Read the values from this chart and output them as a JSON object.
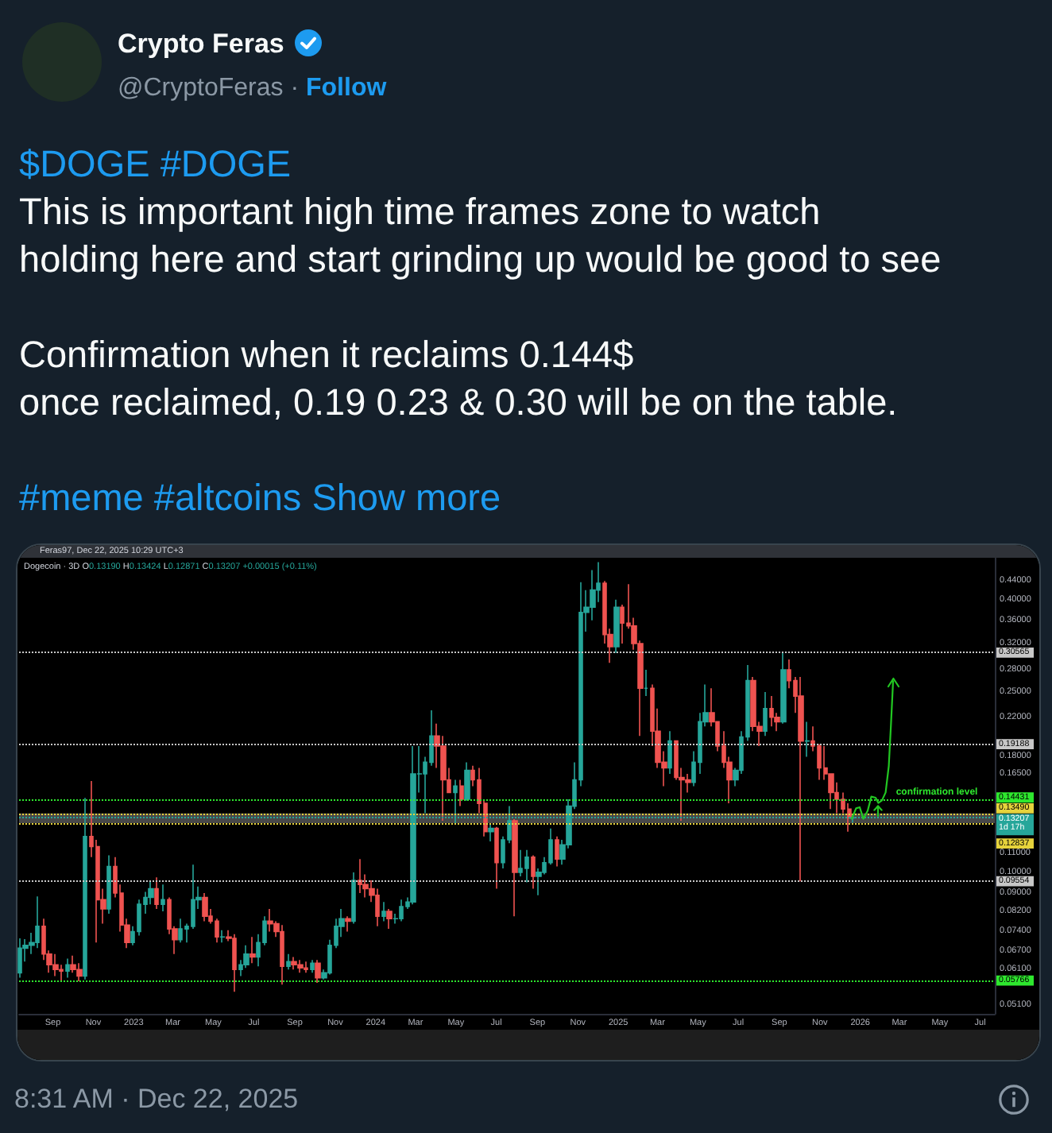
{
  "chart_data": {
    "type": "candlestick",
    "title": "$DOGE #DOGE",
    "subtitle": "This is important high time frames zone to watch\nholding here and start grinding up would be good to see\n\nConfirmation when it reclaims 0.144$\nonce reclaimed, 0.19 0.23 & 0.30 will be on the table.",
    "annotations": [
      "Crypto Feras",
      "@CryptoFeras ·",
      "Follow",
      "#meme #altcoins",
      "Show more",
      "Feras97, Dec 22, 2025 10:29 UTC+3",
      "Dogecoin · 3D",
      "O0.13190 H0.13424 L0.12871 C0.13207 +0.00015 (+0.11%)",
      "8:31 AM · Dec 22, 2025",
      {
        "text": "confirmation level",
        "x": "2026-02-24",
        "y": 0.14431
      }
    ],
    "x": [
      "2022-07-13",
      "2022-07-22",
      "2022-07-31",
      "2022-08-09",
      "2022-08-18",
      "2022-08-27",
      "2022-09-05",
      "2022-09-14",
      "2022-09-23",
      "2022-10-02",
      "2022-10-11",
      "2022-10-20",
      "2022-10-29",
      "2022-11-07",
      "2022-11-16",
      "2022-11-25",
      "2022-12-04",
      "2022-12-13",
      "2022-12-22",
      "2022-12-31",
      "2023-01-09",
      "2023-01-18",
      "2023-01-27",
      "2023-02-05",
      "2023-02-14",
      "2023-02-23",
      "2023-03-04",
      "2023-03-13",
      "2023-03-22",
      "2023-03-31",
      "2023-04-09",
      "2023-04-18",
      "2023-04-27",
      "2023-05-06",
      "2023-05-15",
      "2023-05-24",
      "2023-06-02",
      "2023-06-11",
      "2023-06-20",
      "2023-06-29",
      "2023-07-08",
      "2023-07-17",
      "2023-07-26",
      "2023-08-04",
      "2023-08-13",
      "2023-08-22",
      "2023-08-31",
      "2023-09-09",
      "2023-09-18",
      "2023-09-27",
      "2023-10-06",
      "2023-10-15",
      "2023-10-24",
      "2023-11-02",
      "2023-11-11",
      "2023-11-20",
      "2023-11-29",
      "2023-12-08",
      "2023-12-17",
      "2023-12-26",
      "2024-01-04",
      "2024-01-13",
      "2024-01-22",
      "2024-01-31",
      "2024-02-09",
      "2024-02-18",
      "2024-02-27",
      "2024-03-07",
      "2024-03-16",
      "2024-03-25",
      "2024-04-03",
      "2024-04-12",
      "2024-04-21",
      "2024-04-30",
      "2024-05-09",
      "2024-05-18",
      "2024-05-27",
      "2024-06-05",
      "2024-06-14",
      "2024-06-23",
      "2024-07-02",
      "2024-07-11",
      "2024-07-20",
      "2024-07-29",
      "2024-08-07",
      "2024-08-16",
      "2024-08-25",
      "2024-09-03",
      "2024-09-12",
      "2024-09-21",
      "2024-09-30",
      "2024-10-09",
      "2024-10-18",
      "2024-10-27",
      "2024-11-05",
      "2024-11-14",
      "2024-11-23",
      "2024-12-02",
      "2024-12-11",
      "2024-12-20",
      "2024-12-29",
      "2025-01-07",
      "2025-01-16",
      "2025-01-25",
      "2025-02-03",
      "2025-02-12",
      "2025-02-21",
      "2025-03-02",
      "2025-03-11",
      "2025-03-20",
      "2025-03-29",
      "2025-04-07",
      "2025-04-16",
      "2025-04-25",
      "2025-05-04",
      "2025-05-13",
      "2025-05-22",
      "2025-05-31",
      "2025-06-09",
      "2025-06-18",
      "2025-06-27",
      "2025-07-06",
      "2025-07-15",
      "2025-07-24",
      "2025-08-02",
      "2025-08-11",
      "2025-08-20",
      "2025-08-29",
      "2025-09-07",
      "2025-09-16",
      "2025-09-25",
      "2025-10-04",
      "2025-10-13",
      "2025-10-22",
      "2025-10-31",
      "2025-11-09",
      "2025-11-18",
      "2025-11-27",
      "2025-12-06",
      "2025-12-15",
      "2025-12-21"
    ],
    "ohlc": [
      [
        0.06,
        0.0715,
        0.0585,
        0.068
      ],
      [
        0.068,
        0.0712,
        0.0635,
        0.069
      ],
      [
        0.069,
        0.0735,
        0.066,
        0.07
      ],
      [
        0.07,
        0.0885,
        0.068,
        0.076
      ],
      [
        0.076,
        0.079,
        0.064,
        0.066
      ],
      [
        0.066,
        0.0672,
        0.06,
        0.0625
      ],
      [
        0.0625,
        0.066,
        0.059,
        0.061
      ],
      [
        0.061,
        0.0625,
        0.0575,
        0.0605
      ],
      [
        0.0605,
        0.0645,
        0.0585,
        0.0625
      ],
      [
        0.0625,
        0.0655,
        0.06,
        0.061
      ],
      [
        0.061,
        0.063,
        0.0575,
        0.059
      ],
      [
        0.059,
        0.146,
        0.058,
        0.12
      ],
      [
        0.12,
        0.159,
        0.108,
        0.114
      ],
      [
        0.114,
        0.118,
        0.07,
        0.087
      ],
      [
        0.087,
        0.092,
        0.077,
        0.083
      ],
      [
        0.083,
        0.109,
        0.081,
        0.103
      ],
      [
        0.103,
        0.108,
        0.088,
        0.09
      ],
      [
        0.09,
        0.094,
        0.074,
        0.0765
      ],
      [
        0.0765,
        0.079,
        0.068,
        0.07
      ],
      [
        0.07,
        0.076,
        0.069,
        0.074
      ],
      [
        0.074,
        0.087,
        0.0725,
        0.085
      ],
      [
        0.085,
        0.0905,
        0.081,
        0.088
      ],
      [
        0.088,
        0.096,
        0.085,
        0.092
      ],
      [
        0.092,
        0.0975,
        0.083,
        0.085
      ],
      [
        0.085,
        0.094,
        0.082,
        0.087
      ],
      [
        0.087,
        0.088,
        0.073,
        0.075
      ],
      [
        0.075,
        0.076,
        0.066,
        0.071
      ],
      [
        0.071,
        0.079,
        0.07,
        0.075
      ],
      [
        0.075,
        0.077,
        0.07,
        0.076
      ],
      [
        0.076,
        0.104,
        0.075,
        0.087
      ],
      [
        0.087,
        0.093,
        0.083,
        0.088
      ],
      [
        0.088,
        0.09,
        0.078,
        0.08
      ],
      [
        0.08,
        0.083,
        0.077,
        0.078
      ],
      [
        0.078,
        0.079,
        0.07,
        0.072
      ],
      [
        0.072,
        0.0745,
        0.07,
        0.072
      ],
      [
        0.072,
        0.0745,
        0.0705,
        0.0715
      ],
      [
        0.0715,
        0.073,
        0.0545,
        0.061
      ],
      [
        0.061,
        0.064,
        0.059,
        0.0625
      ],
      [
        0.0625,
        0.069,
        0.0615,
        0.066
      ],
      [
        0.066,
        0.072,
        0.063,
        0.065
      ],
      [
        0.065,
        0.073,
        0.062,
        0.07
      ],
      [
        0.07,
        0.08,
        0.069,
        0.078
      ],
      [
        0.078,
        0.083,
        0.074,
        0.077
      ],
      [
        0.077,
        0.078,
        0.072,
        0.074
      ],
      [
        0.074,
        0.0765,
        0.0565,
        0.062
      ],
      [
        0.062,
        0.066,
        0.061,
        0.0635
      ],
      [
        0.0635,
        0.065,
        0.061,
        0.0625
      ],
      [
        0.0625,
        0.064,
        0.06,
        0.0615
      ],
      [
        0.0615,
        0.0635,
        0.06,
        0.061
      ],
      [
        0.061,
        0.064,
        0.06,
        0.063
      ],
      [
        0.063,
        0.064,
        0.057,
        0.0585
      ],
      [
        0.0585,
        0.061,
        0.058,
        0.06
      ],
      [
        0.06,
        0.071,
        0.0595,
        0.069
      ],
      [
        0.069,
        0.079,
        0.068,
        0.076
      ],
      [
        0.076,
        0.083,
        0.072,
        0.079
      ],
      [
        0.079,
        0.08,
        0.074,
        0.078
      ],
      [
        0.078,
        0.1,
        0.077,
        0.096
      ],
      [
        0.096,
        0.107,
        0.09,
        0.094
      ],
      [
        0.094,
        0.099,
        0.088,
        0.092
      ],
      [
        0.092,
        0.096,
        0.086,
        0.089
      ],
      [
        0.089,
        0.092,
        0.076,
        0.08
      ],
      [
        0.08,
        0.086,
        0.078,
        0.082
      ],
      [
        0.082,
        0.083,
        0.075,
        0.079
      ],
      [
        0.079,
        0.081,
        0.077,
        0.079
      ],
      [
        0.079,
        0.087,
        0.078,
        0.084
      ],
      [
        0.084,
        0.088,
        0.083,
        0.086
      ],
      [
        0.086,
        0.19,
        0.085,
        0.165
      ],
      [
        0.165,
        0.19,
        0.15,
        0.165
      ],
      [
        0.165,
        0.18,
        0.135,
        0.175
      ],
      [
        0.175,
        0.228,
        0.172,
        0.2
      ],
      [
        0.2,
        0.213,
        0.17,
        0.19
      ],
      [
        0.19,
        0.2,
        0.13,
        0.16
      ],
      [
        0.16,
        0.17,
        0.15,
        0.15
      ],
      [
        0.15,
        0.16,
        0.128,
        0.155
      ],
      [
        0.155,
        0.16,
        0.14,
        0.145
      ],
      [
        0.145,
        0.175,
        0.144,
        0.168
      ],
      [
        0.168,
        0.172,
        0.155,
        0.16
      ],
      [
        0.16,
        0.17,
        0.135,
        0.142
      ],
      [
        0.142,
        0.145,
        0.12,
        0.123
      ],
      [
        0.123,
        0.128,
        0.117,
        0.125
      ],
      [
        0.125,
        0.126,
        0.092,
        0.105
      ],
      [
        0.105,
        0.12,
        0.102,
        0.118
      ],
      [
        0.118,
        0.14,
        0.116,
        0.13
      ],
      [
        0.13,
        0.131,
        0.08,
        0.1
      ],
      [
        0.1,
        0.112,
        0.098,
        0.102
      ],
      [
        0.102,
        0.112,
        0.095,
        0.108
      ],
      [
        0.108,
        0.109,
        0.092,
        0.098
      ],
      [
        0.098,
        0.102,
        0.089,
        0.1
      ],
      [
        0.1,
        0.108,
        0.099,
        0.105
      ],
      [
        0.105,
        0.125,
        0.104,
        0.118
      ],
      [
        0.118,
        0.12,
        0.103,
        0.107
      ],
      [
        0.107,
        0.118,
        0.104,
        0.115
      ],
      [
        0.115,
        0.145,
        0.113,
        0.14
      ],
      [
        0.14,
        0.175,
        0.138,
        0.16
      ],
      [
        0.16,
        0.437,
        0.155,
        0.375
      ],
      [
        0.375,
        0.42,
        0.34,
        0.385
      ],
      [
        0.385,
        0.465,
        0.36,
        0.42
      ],
      [
        0.42,
        0.484,
        0.395,
        0.435
      ],
      [
        0.435,
        0.44,
        0.32,
        0.335
      ],
      [
        0.335,
        0.345,
        0.29,
        0.315
      ],
      [
        0.315,
        0.4,
        0.305,
        0.385
      ],
      [
        0.385,
        0.39,
        0.32,
        0.355
      ],
      [
        0.355,
        0.433,
        0.345,
        0.35
      ],
      [
        0.35,
        0.365,
        0.31,
        0.32
      ],
      [
        0.32,
        0.325,
        0.2,
        0.255
      ],
      [
        0.255,
        0.28,
        0.245,
        0.255
      ],
      [
        0.255,
        0.26,
        0.19,
        0.205
      ],
      [
        0.205,
        0.23,
        0.17,
        0.175
      ],
      [
        0.175,
        0.185,
        0.155,
        0.17
      ],
      [
        0.17,
        0.205,
        0.165,
        0.195
      ],
      [
        0.195,
        0.195,
        0.16,
        0.162
      ],
      [
        0.162,
        0.17,
        0.13,
        0.16
      ],
      [
        0.16,
        0.165,
        0.15,
        0.158
      ],
      [
        0.158,
        0.185,
        0.155,
        0.175
      ],
      [
        0.175,
        0.225,
        0.165,
        0.215
      ],
      [
        0.215,
        0.26,
        0.21,
        0.225
      ],
      [
        0.225,
        0.255,
        0.21,
        0.215
      ],
      [
        0.215,
        0.215,
        0.185,
        0.19
      ],
      [
        0.19,
        0.205,
        0.17,
        0.175
      ],
      [
        0.175,
        0.18,
        0.142,
        0.16
      ],
      [
        0.16,
        0.17,
        0.155,
        0.168
      ],
      [
        0.168,
        0.205,
        0.165,
        0.199
      ],
      [
        0.199,
        0.287,
        0.195,
        0.265
      ],
      [
        0.265,
        0.27,
        0.205,
        0.21
      ],
      [
        0.21,
        0.215,
        0.19,
        0.205
      ],
      [
        0.205,
        0.25,
        0.2,
        0.23
      ],
      [
        0.23,
        0.245,
        0.21,
        0.22
      ],
      [
        0.22,
        0.225,
        0.205,
        0.215
      ],
      [
        0.215,
        0.307,
        0.213,
        0.28
      ],
      [
        0.28,
        0.295,
        0.255,
        0.265
      ],
      [
        0.265,
        0.27,
        0.225,
        0.245
      ],
      [
        0.245,
        0.27,
        0.0955,
        0.195
      ],
      [
        0.195,
        0.215,
        0.18,
        0.195
      ],
      [
        0.195,
        0.21,
        0.185,
        0.19
      ],
      [
        0.19,
        0.192,
        0.16,
        0.17
      ],
      [
        0.17,
        0.19,
        0.16,
        0.165
      ],
      [
        0.165,
        0.165,
        0.138,
        0.15
      ],
      [
        0.15,
        0.158,
        0.135,
        0.145
      ],
      [
        0.145,
        0.15,
        0.135,
        0.138
      ],
      [
        0.138,
        0.142,
        0.123,
        0.1319
      ],
      [
        0.1319,
        0.13424,
        0.12871,
        0.13207
      ]
    ],
    "colors": [
      "#26a69a",
      "#26a69a",
      "#26a69a",
      "#26a69a",
      "#ef5350",
      "#ef5350",
      "#ef5350",
      "#ef5350",
      "#26a69a",
      "#ef5350",
      "#ef5350",
      "#26a69a",
      "#ef5350",
      "#ef5350",
      "#ef5350",
      "#26a69a",
      "#ef5350",
      "#ef5350",
      "#ef5350",
      "#26a69a",
      "#26a69a",
      "#26a69a",
      "#26a69a",
      "#ef5350",
      "#26a69a",
      "#ef5350",
      "#ef5350",
      "#26a69a",
      "#26a69a",
      "#26a69a",
      "#26a69a",
      "#ef5350",
      "#ef5350",
      "#ef5350",
      "#26a69a",
      "#ef5350",
      "#ef5350",
      "#26a69a",
      "#26a69a",
      "#ef5350",
      "#26a69a",
      "#26a69a",
      "#ef5350",
      "#ef5350",
      "#ef5350",
      "#26a69a",
      "#ef5350",
      "#ef5350",
      "#ef5350",
      "#26a69a",
      "#ef5350",
      "#26a69a",
      "#26a69a",
      "#26a69a",
      "#26a69a",
      "#ef5350",
      "#26a69a",
      "#ef5350",
      "#ef5350",
      "#ef5350",
      "#ef5350",
      "#26a69a",
      "#ef5350",
      "#26a69a",
      "#26a69a",
      "#26a69a",
      "#26a69a",
      "#26a69a",
      "#26a69a",
      "#26a69a",
      "#ef5350",
      "#ef5350",
      "#ef5350",
      "#26a69a",
      "#ef5350",
      "#26a69a",
      "#ef5350",
      "#ef5350",
      "#ef5350",
      "#26a69a",
      "#ef5350",
      "#26a69a",
      "#26a69a",
      "#ef5350",
      "#26a69a",
      "#26a69a",
      "#ef5350",
      "#26a69a",
      "#26a69a",
      "#26a69a",
      "#ef5350",
      "#26a69a",
      "#26a69a",
      "#26a69a",
      "#26a69a",
      "#26a69a",
      "#26a69a",
      "#26a69a",
      "#ef5350",
      "#ef5350",
      "#26a69a",
      "#ef5350",
      "#ef5350",
      "#ef5350",
      "#ef5350",
      "#26a69a",
      "#ef5350",
      "#ef5350",
      "#ef5350",
      "#26a69a",
      "#ef5350",
      "#ef5350",
      "#ef5350",
      "#26a69a",
      "#26a69a",
      "#26a69a",
      "#ef5350",
      "#ef5350",
      "#ef5350",
      "#ef5350",
      "#26a69a",
      "#26a69a",
      "#26a69a",
      "#ef5350",
      "#ef5350",
      "#26a69a",
      "#ef5350",
      "#ef5350",
      "#26a69a",
      "#ef5350",
      "#ef5350",
      "#ef5350",
      "#26a69a",
      "#ef5350",
      "#ef5350",
      "#ef5350",
      "#ef5350",
      "#ef5350",
      "#ef5350",
      "#ef5350",
      "#26a69a"
    ],
    "xlim": [
      "2022-07-12",
      "2026-07-23"
    ],
    "xticks": [
      {
        "value": "2022-09-01",
        "label": "Sep"
      },
      {
        "value": "2022-11-01",
        "label": "Nov"
      },
      {
        "value": "2023-01-01",
        "label": "2023"
      },
      {
        "value": "2023-03-01",
        "label": "Mar"
      },
      {
        "value": "2023-05-01",
        "label": "May"
      },
      {
        "value": "2023-07-01",
        "label": "Jul"
      },
      {
        "value": "2023-09-01",
        "label": "Sep"
      },
      {
        "value": "2023-11-01",
        "label": "Nov"
      },
      {
        "value": "2024-01-01",
        "label": "2024"
      },
      {
        "value": "2024-03-01",
        "label": "Mar"
      },
      {
        "value": "2024-05-01",
        "label": "May"
      },
      {
        "value": "2024-07-01",
        "label": "Jul"
      },
      {
        "value": "2024-09-01",
        "label": "Sep"
      },
      {
        "value": "2024-11-01",
        "label": "Nov"
      },
      {
        "value": "2025-01-01",
        "label": "2025"
      },
      {
        "value": "2025-03-01",
        "label": "Mar"
      },
      {
        "value": "2025-05-01",
        "label": "May"
      },
      {
        "value": "2025-07-01",
        "label": "Jul"
      },
      {
        "value": "2025-09-01",
        "label": "Sep"
      },
      {
        "value": "2025-11-01",
        "label": "Nov"
      },
      {
        "value": "2026-01-01",
        "label": "2026"
      },
      {
        "value": "2026-03-01",
        "label": "Mar"
      },
      {
        "value": "2026-05-01",
        "label": "May"
      },
      {
        "value": "2026-07-01",
        "label": "Jul"
      }
    ],
    "ylim": [
      0.0487,
      0.495
    ],
    "yticks": [
      {
        "value": 0.44,
        "label": "0.44000"
      },
      {
        "value": 0.4,
        "label": "0.40000"
      },
      {
        "value": 0.36,
        "label": "0.36000"
      },
      {
        "value": 0.32,
        "label": "0.32000"
      },
      {
        "value": 0.28,
        "label": "0.28000"
      },
      {
        "value": 0.25,
        "label": "0.25000"
      },
      {
        "value": 0.22,
        "label": "0.22000"
      },
      {
        "value": 0.18,
        "label": "0.18000"
      },
      {
        "value": 0.165,
        "label": "0.16500"
      },
      {
        "value": 0.11,
        "label": "0.11000"
      },
      {
        "value": 0.1,
        "label": "0.10000"
      },
      {
        "value": 0.09,
        "label": "0.09000"
      },
      {
        "value": 0.082,
        "label": "0.08200"
      },
      {
        "value": 0.074,
        "label": "0.07400"
      },
      {
        "value": 0.067,
        "label": "0.06700"
      },
      {
        "value": 0.061,
        "label": "0.06100"
      },
      {
        "value": 0.051,
        "label": "0.05100"
      }
    ],
    "log": true,
    "ref_lines": [
      {
        "axis": "y",
        "value": 0.30565,
        "label": "0.30565",
        "color": "#c8c8c8",
        "line_style": "dotted"
      },
      {
        "axis": "y",
        "value": 0.19188,
        "label": "0.19188",
        "color": "#c8c8c8",
        "line_style": "dotted"
      },
      {
        "axis": "y",
        "value": 0.14431,
        "label": "0.14431",
        "color": "#2ee82e",
        "line_style": "dotted"
      },
      {
        "axis": "y",
        "value": 0.1349,
        "label": "0.13490",
        "color": "#e6d33c",
        "line_style": "dotted"
      },
      {
        "axis": "y",
        "value": 0.13207,
        "label": "0.13207\n1d 17h",
        "color": "#26a69a",
        "line_style": "dotted"
      },
      {
        "axis": "y",
        "value": 0.12837,
        "label": "0.12837",
        "color": "#e6d33c",
        "line_style": "dotted"
      },
      {
        "axis": "y",
        "value": 0.09554,
        "label": "0.09554",
        "color": "#c8c8c8",
        "line_style": "dotted"
      },
      {
        "axis": "y",
        "value": 0.05766,
        "label": "0.05766",
        "color": "#2ee82e",
        "line_style": "dotted"
      }
    ],
    "bands": [
      {
        "axis": "y",
        "from": 0.12837,
        "to": 0.1349,
        "color": "#555555"
      }
    ]
  }
}
